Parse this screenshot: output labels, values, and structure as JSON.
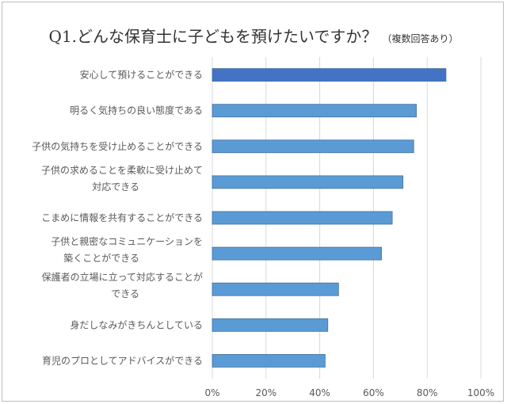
{
  "chart_data": {
    "type": "bar",
    "orientation": "horizontal",
    "title": "Q1.どんな保育士に子どもを預けたいですか？",
    "subtitle": "（複数回答あり）",
    "categories": [
      [
        "安心して預けることができる"
      ],
      [
        "明るく気持ちの良い態度である"
      ],
      [
        "子供の気持ちを受け止めることができる"
      ],
      [
        "子供の求めることを柔軟に受け止めて",
        "対応できる"
      ],
      [
        "こまめに情報を共有することができる"
      ],
      [
        "子供と親密なコミュニケーションを",
        "築くことができる"
      ],
      [
        "保護者の立場に立って対応することが",
        "できる"
      ],
      [
        "身だしなみがきちんとしている"
      ],
      [
        "育児のプロとしてアドバイスができる"
      ]
    ],
    "values": [
      87,
      76,
      75,
      71,
      67,
      63,
      47,
      43,
      42
    ],
    "unit": "%",
    "xlim": [
      0,
      100
    ],
    "xticks": [
      "0%",
      "20%",
      "40%",
      "60%",
      "80%",
      "100%"
    ],
    "grid": true,
    "colors": {
      "highlight": "#4472C4",
      "bar": "#5B9BD5",
      "bar_border": "#41719C",
      "grid": "#d9d9d9"
    }
  }
}
